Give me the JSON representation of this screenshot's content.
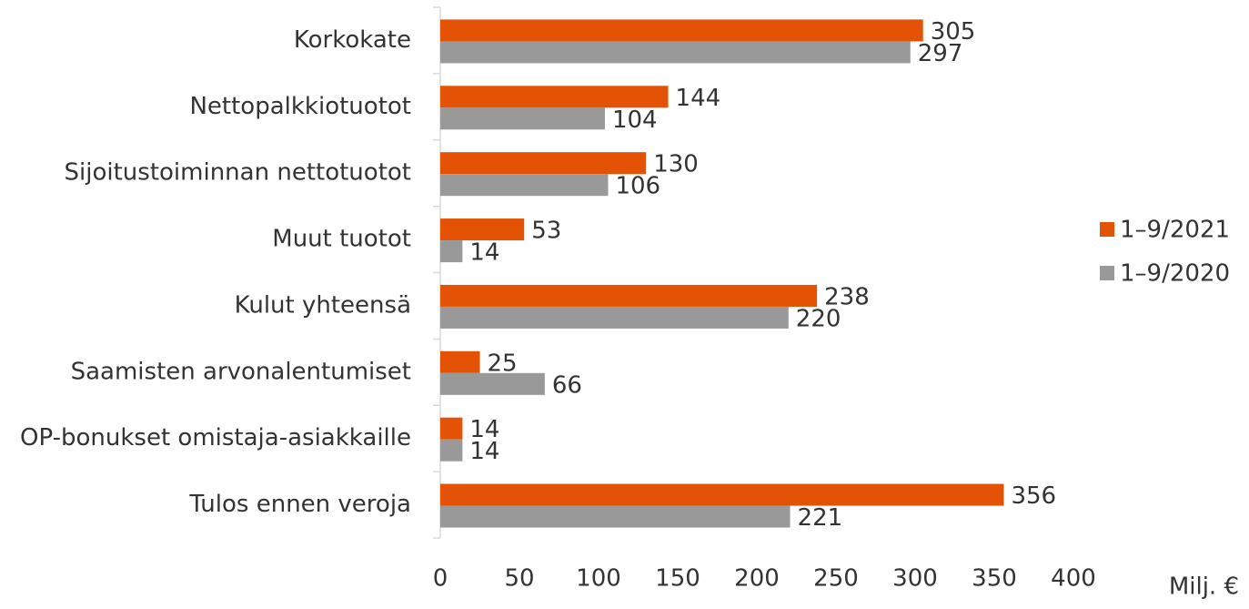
{
  "chart_data": {
    "type": "bar",
    "orientation": "horizontal",
    "categories": [
      "Korkokate",
      "Nettopalkkiotuotot",
      "Sijoitustoiminnan nettotuotot",
      "Muut tuotot",
      "Kulut yhteensä",
      "Saamisten arvonalentumiset",
      "OP-bonukset omistaja-asiakkaille",
      "Tulos ennen veroja"
    ],
    "series": [
      {
        "name": "1–9/2021",
        "color": "#e35205",
        "values": [
          305,
          144,
          130,
          53,
          238,
          25,
          14,
          356
        ]
      },
      {
        "name": "1–9/2020",
        "color": "#999999",
        "values": [
          297,
          104,
          106,
          14,
          220,
          66,
          14,
          221
        ]
      }
    ],
    "xlim": [
      0,
      400
    ],
    "xticks": [
      0,
      50,
      100,
      150,
      200,
      250,
      300,
      350,
      400
    ],
    "x_label": "Milj. €",
    "legend": "right",
    "grid": false
  }
}
